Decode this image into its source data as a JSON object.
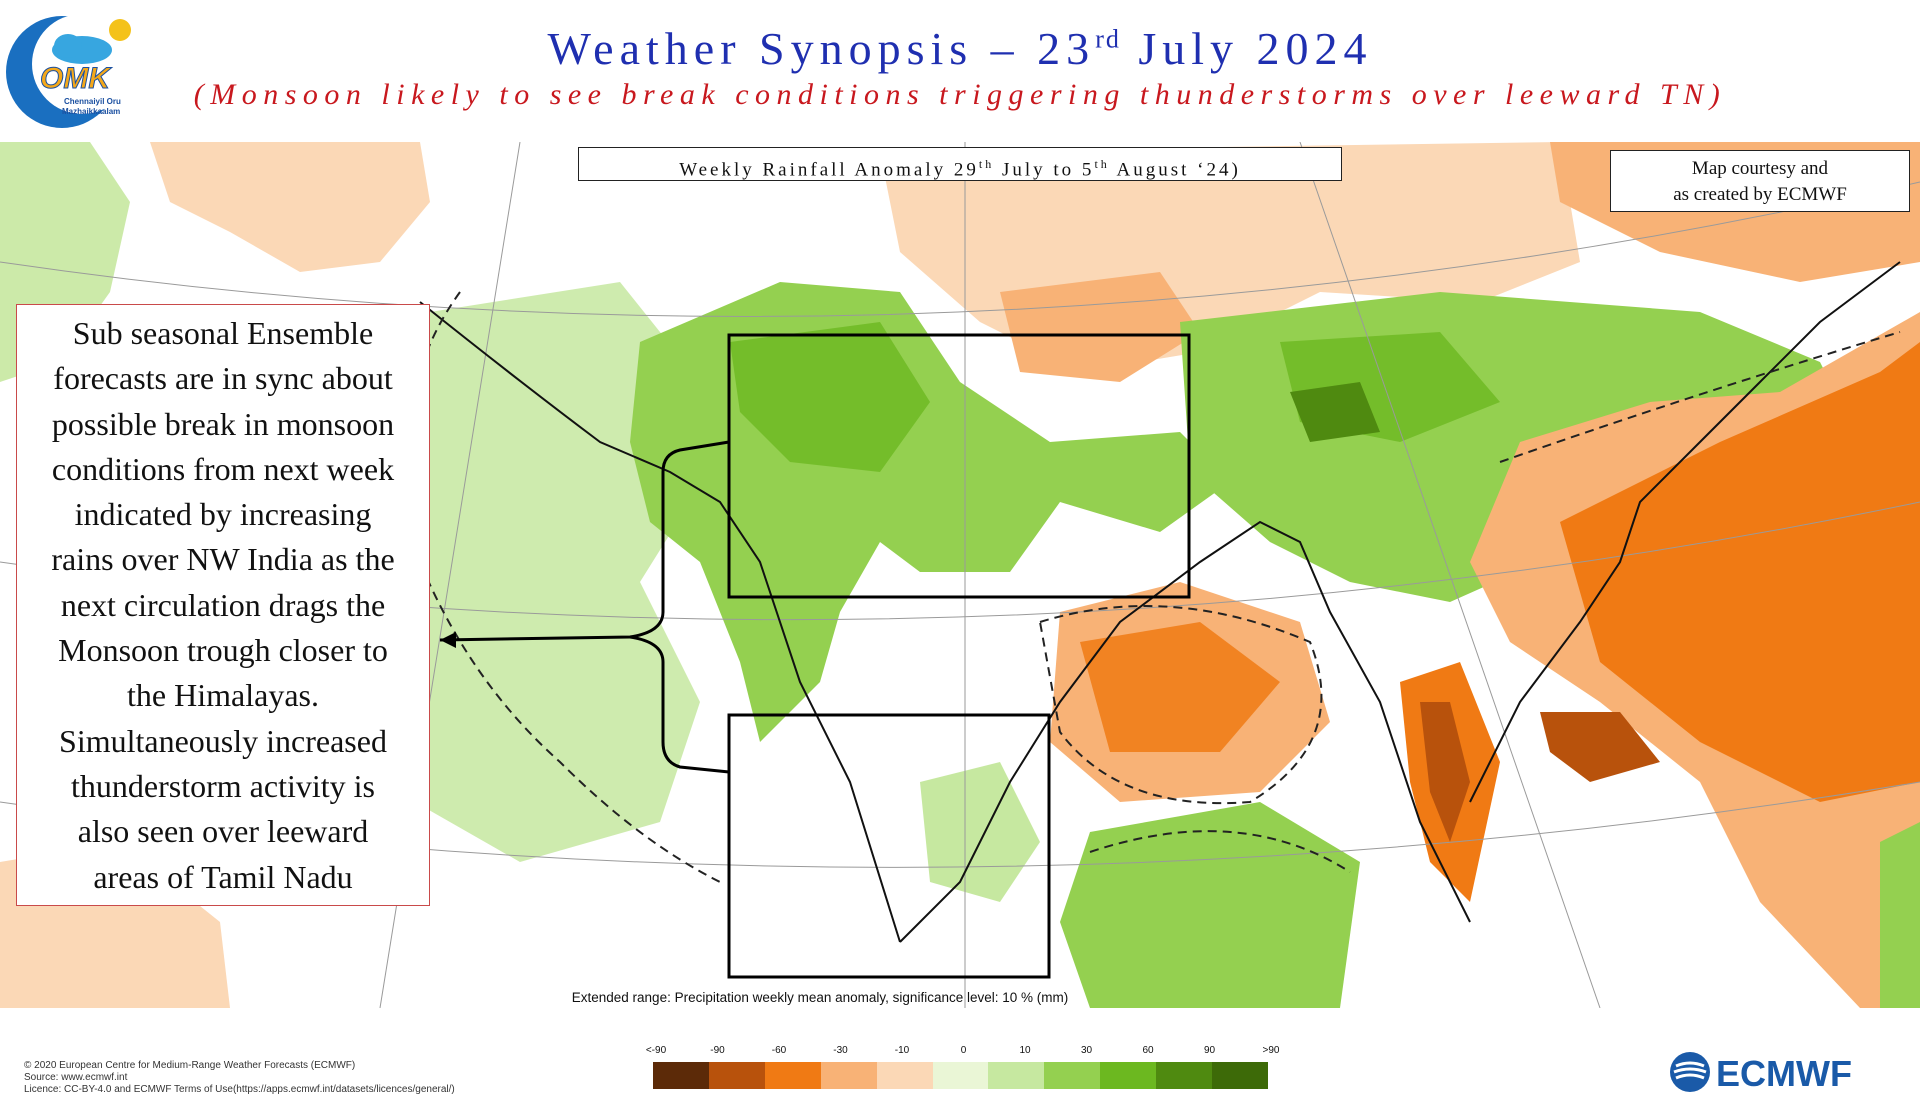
{
  "header": {
    "title_main": "Weather Synopsis – 23",
    "title_sup": "rd",
    "title_end": " July 2024",
    "subtitle": "(Monsoon likely to see break conditions triggering thunderstorms over leeward TN)"
  },
  "logo": {
    "icon": "omk-cloud-sun-icon",
    "letters": "OMK",
    "tagline_1": "Chennaiyil Oru",
    "tagline_2": "Mazhaikkaalam"
  },
  "map": {
    "weekly_label_a": "Weekly Rainfall Anomaly 29",
    "weekly_sup_a": "th",
    "weekly_label_b": " July to 5",
    "weekly_sup_b": "th",
    "weekly_label_c": " August ‘24)",
    "courtesy_line1": "Map courtesy and",
    "courtesy_line2": "as created by ECMWF",
    "annotation_lines": [
      "Sub seasonal Ensemble",
      "forecasts are in sync about",
      "possible break in monsoon",
      "conditions from next week",
      "indicated by increasing",
      "rains over NW India as the",
      "next circulation drags the",
      "Monsoon trough closer to",
      "the Himalayas.",
      "Simultaneously increased",
      "thunderstorm activity is",
      "also seen over leeward",
      "areas of  Tamil Nadu"
    ]
  },
  "legend": {
    "title": "Extended range: Precipitation weekly mean anomaly, significance level: 10 % (mm)",
    "ticks": [
      "<-90",
      "-90",
      "-60",
      "-30",
      "-10",
      "0",
      "10",
      "30",
      "60",
      "90",
      ">90"
    ],
    "colors": [
      "#5c2a08",
      "#b8520c",
      "#f07a14",
      "#f8b276",
      "#fbd8b6",
      "#eaf6d6",
      "#c6e8a0",
      "#94d050",
      "#6cb820",
      "#4f8a10",
      "#3d6a08"
    ]
  },
  "footer": {
    "copyright_1": "© 2020 European Centre for Medium-Range Weather Forecasts (ECMWF)",
    "copyright_2": "Source: www.ecmwf.int",
    "copyright_3": "Licence: CC-BY-4.0 and ECMWF Terms of Use(https://apps.ecmwf.int/datasets/licences/general/)",
    "ecmwf_logo_text": "ECMWF"
  }
}
